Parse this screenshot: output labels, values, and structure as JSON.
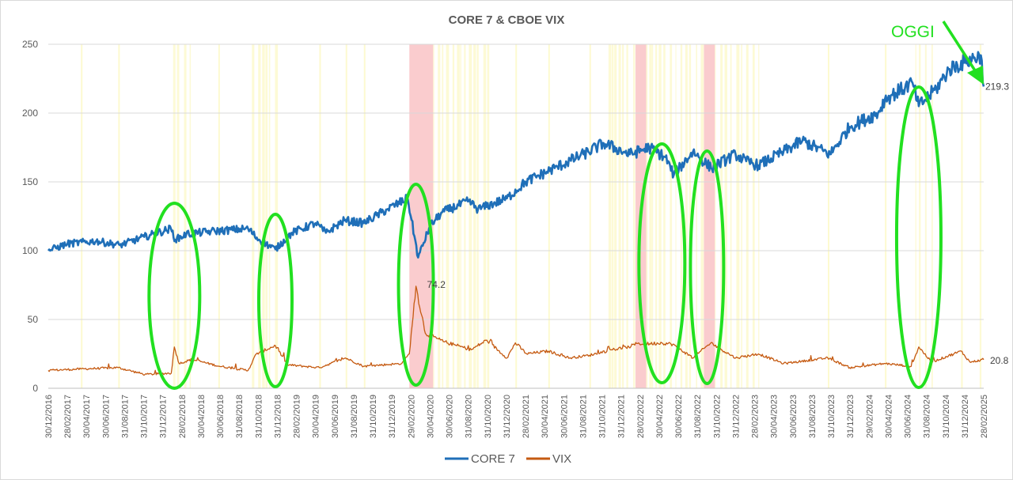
{
  "chart_data": {
    "type": "line",
    "title": "CORE 7 & CBOE VIX",
    "ylim": [
      0,
      250
    ],
    "yticks": [
      0,
      50,
      100,
      150,
      200,
      250
    ],
    "x_start": "2016-12-30",
    "x_end": "2025-02-28",
    "x_tick_labels": [
      "30/12/2016",
      "28/02/2017",
      "30/04/2017",
      "30/06/2017",
      "31/08/2017",
      "31/10/2017",
      "31/12/2017",
      "28/02/2018",
      "30/04/2018",
      "30/06/2018",
      "31/08/2018",
      "31/10/2018",
      "31/12/2018",
      "28/02/2019",
      "30/04/2019",
      "30/06/2019",
      "31/08/2019",
      "31/10/2019",
      "31/12/2019",
      "29/02/2020",
      "30/04/2020",
      "30/06/2020",
      "31/08/2020",
      "31/10/2020",
      "31/12/2020",
      "28/02/2021",
      "30/04/2021",
      "30/06/2021",
      "31/08/2021",
      "31/10/2021",
      "31/12/2021",
      "28/02/2022",
      "30/04/2022",
      "30/06/2022",
      "31/08/2022",
      "31/10/2022",
      "31/12/2022",
      "28/02/2023",
      "30/04/2023",
      "30/06/2023",
      "31/08/2023",
      "31/10/2023",
      "31/12/2023",
      "29/02/2024",
      "30/04/2024",
      "30/06/2024",
      "31/08/2024",
      "31/10/2024",
      "31/12/2024",
      "28/02/2025"
    ],
    "series": [
      {
        "name": "CORE 7",
        "color": "#1f6fb8",
        "x": [
          "2016-12-30",
          "2017-03-01",
          "2017-06-01",
          "2017-08-15",
          "2017-11-01",
          "2018-01-25",
          "2018-02-08",
          "2018-03-15",
          "2018-06-01",
          "2018-09-28",
          "2018-11-01",
          "2018-12-24",
          "2019-02-15",
          "2019-05-01",
          "2019-06-03",
          "2019-08-01",
          "2019-10-01",
          "2019-12-15",
          "2020-02-19",
          "2020-03-23",
          "2020-04-30",
          "2020-06-08",
          "2020-09-01",
          "2020-09-30",
          "2020-12-31",
          "2021-03-01",
          "2021-06-01",
          "2021-09-01",
          "2021-11-05",
          "2022-01-27",
          "2022-03-29",
          "2022-05-20",
          "2022-06-16",
          "2022-08-16",
          "2022-10-13",
          "2022-12-30",
          "2023-02-02",
          "2023-03-13",
          "2023-06-01",
          "2023-07-31",
          "2023-10-27",
          "2023-12-29",
          "2024-03-28",
          "2024-04-19",
          "2024-07-16",
          "2024-08-05",
          "2024-09-30",
          "2024-11-11",
          "2025-01-06",
          "2025-02-19",
          "2025-02-28"
        ],
        "values": [
          100,
          105,
          107,
          104,
          110,
          116,
          108,
          112,
          114,
          116,
          108,
          101,
          113,
          120,
          113,
          122,
          120,
          130,
          138,
          95,
          118,
          128,
          136,
          130,
          138,
          150,
          160,
          170,
          178,
          170,
          175,
          168,
          155,
          172,
          160,
          170,
          165,
          162,
          172,
          180,
          170,
          190,
          200,
          210,
          222,
          205,
          218,
          232,
          238,
          242,
          219.3
        ],
        "end_label": "219.3"
      },
      {
        "name": "VIX",
        "color": "#c55a11",
        "x": [
          "2016-12-30",
          "2017-04-13",
          "2017-08-10",
          "2017-11-03",
          "2018-01-26",
          "2018-02-05",
          "2018-02-20",
          "2018-04-02",
          "2018-06-29",
          "2018-09-28",
          "2018-10-24",
          "2018-12-24",
          "2019-02-01",
          "2019-05-13",
          "2019-08-05",
          "2019-10-01",
          "2020-01-31",
          "2020-02-24",
          "2020-03-16",
          "2020-04-15",
          "2020-06-11",
          "2020-09-08",
          "2020-10-28",
          "2020-12-31",
          "2021-01-27",
          "2021-03-04",
          "2021-05-12",
          "2021-07-19",
          "2021-09-20",
          "2021-11-30",
          "2022-01-24",
          "2022-02-24",
          "2022-03-07",
          "2022-05-09",
          "2022-06-13",
          "2022-08-16",
          "2022-10-12",
          "2022-12-30",
          "2023-03-13",
          "2023-06-01",
          "2023-10-20",
          "2023-12-29",
          "2024-04-19",
          "2024-07-12",
          "2024-08-05",
          "2024-09-15",
          "2024-12-18",
          "2025-01-15",
          "2025-02-28"
        ],
        "values": [
          13,
          14,
          15,
          10,
          11,
          30,
          18,
          21,
          16,
          13,
          25,
          31,
          17,
          15,
          22,
          16,
          18,
          25,
          74.2,
          40,
          34,
          28,
          35,
          22,
          33,
          25,
          27,
          22,
          24,
          28,
          30,
          33,
          32,
          33,
          32,
          22,
          33,
          22,
          25,
          18,
          22,
          15,
          18,
          16,
          30,
          19,
          27,
          19,
          20.8
        ],
        "peak_label": "74.2",
        "end_label": "20.8"
      }
    ],
    "annotations": {
      "oggi": "OGGI",
      "highlight_ellipses_dates": [
        "2018-02-05",
        "2018-12-24",
        "2020-03-16",
        "2022-05-09",
        "2022-09-30",
        "2024-08-05"
      ]
    },
    "colors": {
      "ellipse": "#22e020",
      "band_red": "#f9c6c9",
      "band_yellow": "#fdfad0",
      "grid": "#d9d9d9"
    }
  }
}
